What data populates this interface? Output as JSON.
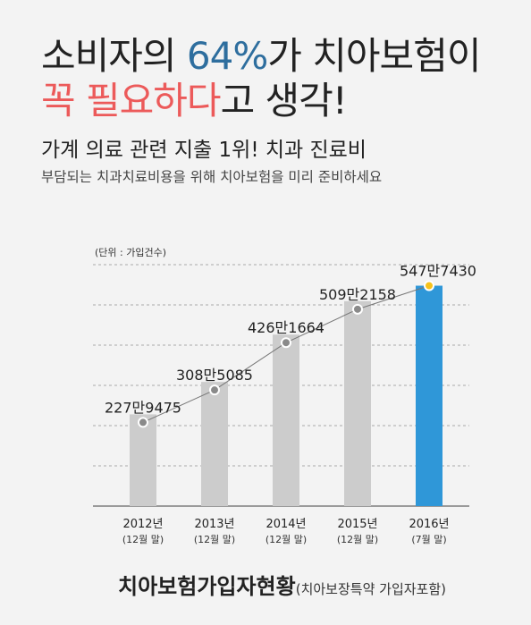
{
  "header": {
    "line1_pre": "소비자의 ",
    "line1_accent": "64%",
    "line1_post": "가 치아보험이",
    "line2_red": "꼭 필요하다",
    "line2_post": "고 생각!"
  },
  "subheading": "가계 의료 관련 지출 1위! 치과 진료비",
  "subtext": "부담되는 치과치료비용을 위해 치아보험을 미리 준비하세요",
  "colors": {
    "accent_blue": "#2e6e9e",
    "accent_red": "#ec5a5a",
    "bar_gray": "#cccccc",
    "bar_blue": "#2f97d8",
    "dot_yellow": "#f7c21b"
  },
  "chart_data": {
    "type": "bar",
    "unit_note": "(단위 : 가입건수)",
    "categories": [
      "2012년",
      "2013년",
      "2014년",
      "2015년",
      "2016년"
    ],
    "sublabels": [
      "(12월 말)",
      "(12월 말)",
      "(12월 말)",
      "(12월 말)",
      "(7월 말)"
    ],
    "values": [
      2279475,
      3085085,
      4261664,
      5092158,
      5477430
    ],
    "value_labels": [
      "227만9475",
      "308만5085",
      "426만1664",
      "509만2158",
      "547만7430"
    ],
    "highlight_index": 4,
    "ylim": [
      0,
      6000000
    ],
    "grid": true
  },
  "footer": {
    "title": "치아보험가입자현황",
    "note": "(치아보장특약 가입자포함)"
  }
}
